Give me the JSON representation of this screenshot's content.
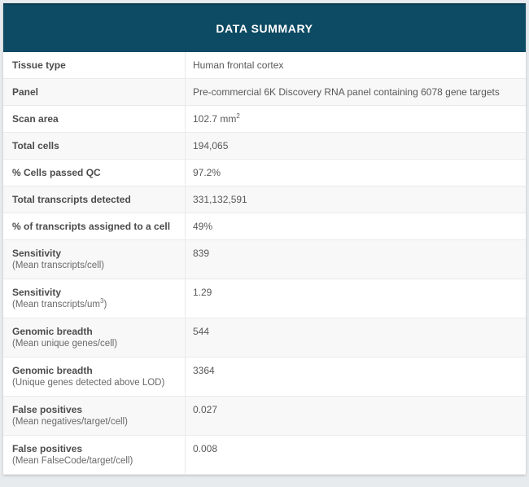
{
  "header": {
    "title": "DATA SUMMARY"
  },
  "colors": {
    "header_bg": "#0d4a63",
    "header_text": "#ffffff",
    "row_alt_bg": "#f8f8f8",
    "border": "#eaeaea",
    "label_text": "#4c4c4e",
    "value_text": "#58585a"
  },
  "table": {
    "rows": [
      {
        "label": "Tissue type",
        "value": "Human frontal cortex"
      },
      {
        "label": "Panel",
        "value": "Pre-commercial 6K Discovery RNA panel containing 6078 gene targets"
      },
      {
        "label": "Scan area",
        "value": "102.7 mm",
        "value_sup": "2"
      },
      {
        "label": "Total cells",
        "value": "194,065"
      },
      {
        "label": "% Cells passed QC",
        "value": "97.2%"
      },
      {
        "label": "Total transcripts detected",
        "value": "331,132,591"
      },
      {
        "label": "% of transcripts assigned to a cell",
        "value": "49%"
      },
      {
        "label": "Sensitivity",
        "sublabel": "(Mean transcripts/cell)",
        "value": "839"
      },
      {
        "label": "Sensitivity",
        "sublabel": "(Mean transcripts/um",
        "sublabel_sup": "3",
        "sublabel_tail": ")",
        "value": "1.29"
      },
      {
        "label": "Genomic breadth",
        "sublabel": "(Mean unique genes/cell)",
        "value": "544"
      },
      {
        "label": "Genomic breadth",
        "sublabel": "(Unique genes detected above LOD)",
        "value": "3364"
      },
      {
        "label": "False positives",
        "sublabel": "(Mean negatives/target/cell)",
        "value": "0.027"
      },
      {
        "label": "False positives",
        "sublabel": "(Mean FalseCode/target/cell)",
        "value": "0.008"
      }
    ]
  }
}
